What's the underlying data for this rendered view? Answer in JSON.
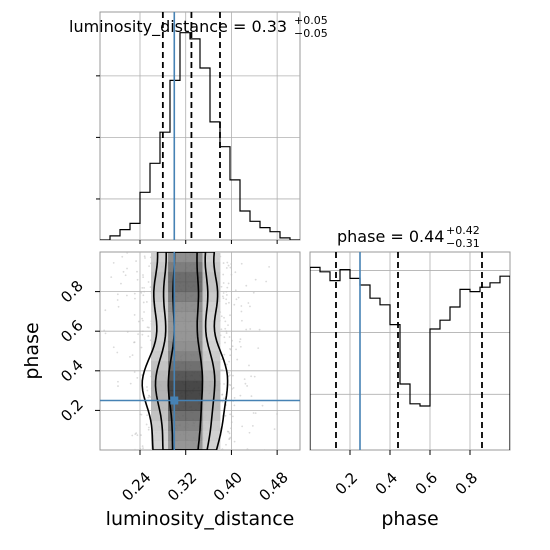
{
  "chart_data": {
    "type": "corner",
    "colors": {
      "truth": "#4682b4",
      "hist": "#000000",
      "quantile": "#000000",
      "grid": "#b0b0b0",
      "points": "#bbbbbb"
    },
    "truths": {
      "luminosity_distance": 0.3,
      "phase": 0.25
    },
    "panels": [
      {
        "id": "hist-luminosity-distance",
        "type": "histogram",
        "title": {
          "main": "luminosity_distance = 0.33",
          "sup": "+0.05",
          "sub": "−0.05"
        },
        "xlim": [
          0.17,
          0.52
        ],
        "bin_edges": [
          0.17,
          0.1875,
          0.205,
          0.2225,
          0.24,
          0.2575,
          0.275,
          0.2925,
          0.31,
          0.3275,
          0.345,
          0.3625,
          0.38,
          0.3975,
          0.415,
          0.4325,
          0.45,
          0.4675,
          0.485,
          0.5025,
          0.52
        ],
        "counts": [
          0,
          0.02,
          0.05,
          0.08,
          0.23,
          0.37,
          0.52,
          0.77,
          1.0,
          0.97,
          0.83,
          0.57,
          0.45,
          0.29,
          0.14,
          0.09,
          0.06,
          0.04,
          0.01,
          0.0
        ],
        "ylim": [
          0,
          1.1
        ],
        "quantiles": [
          0.28,
          0.33,
          0.38
        ],
        "xticks": [
          0.24,
          0.32,
          0.4,
          0.48
        ]
      },
      {
        "id": "hist-phase",
        "type": "histogram",
        "title": {
          "main": "phase = 0.44",
          "sup": "+0.42",
          "sub": "−0.31"
        },
        "xlim": [
          0.0,
          1.0
        ],
        "bin_edges": [
          0.0,
          0.05,
          0.1,
          0.15,
          0.2,
          0.25,
          0.3,
          0.35,
          0.4,
          0.45,
          0.5,
          0.55,
          0.6,
          0.65,
          0.7,
          0.75,
          0.8,
          0.85,
          0.9,
          0.95,
          1.0
        ],
        "counts": [
          0.83,
          0.81,
          0.77,
          0.82,
          0.78,
          0.75,
          0.69,
          0.66,
          0.57,
          0.3,
          0.21,
          0.2,
          0.55,
          0.59,
          0.65,
          0.73,
          0.72,
          0.74,
          0.76,
          0.79
        ],
        "ylim": [
          0,
          0.9
        ],
        "quantiles": [
          0.13,
          0.44,
          0.86
        ],
        "xticks": [
          0.2,
          0.4,
          0.6,
          0.8
        ]
      },
      {
        "id": "joint",
        "type": "2d-density",
        "xlim": [
          0.17,
          0.52
        ],
        "ylim": [
          0.0,
          1.0
        ],
        "xticks": [
          0.24,
          0.32,
          0.4,
          0.48
        ],
        "yticks": [
          0.2,
          0.4,
          0.6,
          0.8
        ]
      }
    ],
    "xlabels": [
      "luminosity_distance",
      "phase"
    ],
    "ylabel": "phase",
    "tick_labels": {
      "luminosity_distance": [
        "0.24",
        "0.32",
        "0.40",
        "0.48"
      ],
      "phase": [
        "0.2",
        "0.4",
        "0.6",
        "0.8"
      ]
    }
  }
}
